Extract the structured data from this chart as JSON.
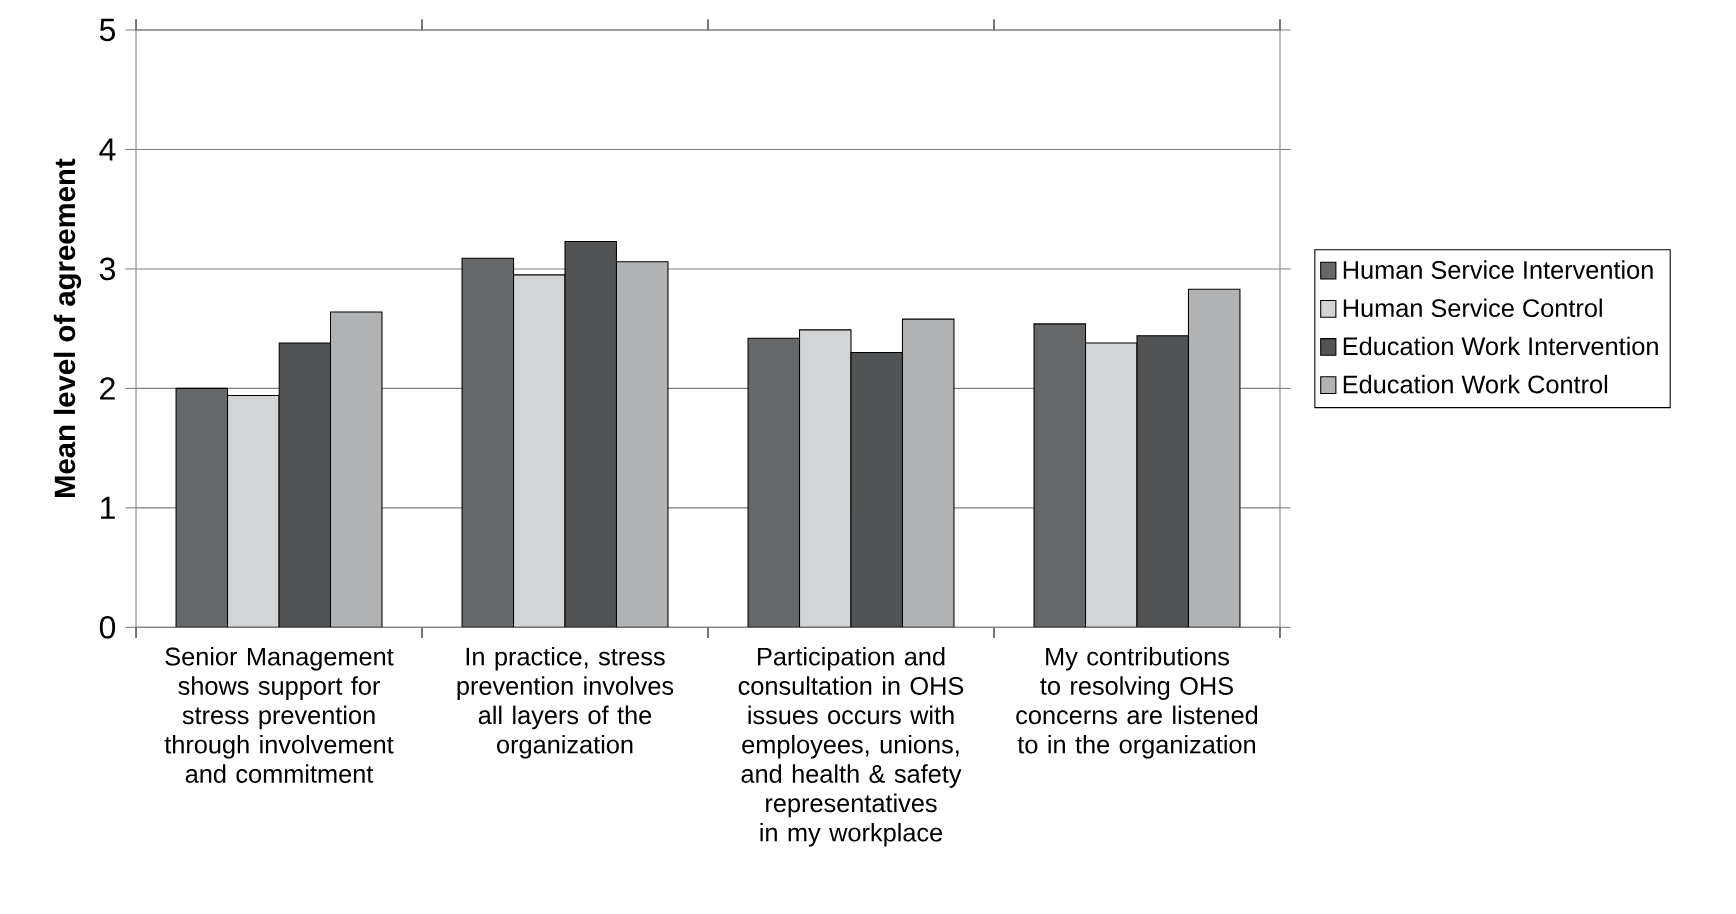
{
  "chart_data": {
    "type": "bar",
    "ylabel": "Mean level of agreement",
    "categories": [
      "Senior Management shows support for stress prevention through involvement and commitment",
      "In practice, stress prevention involves all layers of the organization",
      "Participation and consultation in OHS issues occurs with employees, unions, and health & safety representatives in my workplace",
      "My contributions to resolving OHS concerns are listened to in the organization"
    ],
    "series": [
      {
        "name": "Human Service Intervention",
        "color": "#666769",
        "values": [
          2.0,
          3.09,
          2.42,
          2.54
        ]
      },
      {
        "name": "Human Service Control",
        "color": "#d3d4d6",
        "values": [
          1.94,
          2.95,
          2.49,
          2.38
        ]
      },
      {
        "name": "Education Work Intervention",
        "color": "#525355",
        "values": [
          2.38,
          3.23,
          2.3,
          2.44
        ]
      },
      {
        "name": "Education Work Control",
        "color": "#b0b2b4",
        "values": [
          2.64,
          3.06,
          2.58,
          2.83
        ]
      }
    ],
    "ylim": [
      0,
      5
    ],
    "yticks": [
      0,
      1,
      2,
      3,
      4,
      5
    ],
    "grid": "y",
    "legend": "right"
  }
}
